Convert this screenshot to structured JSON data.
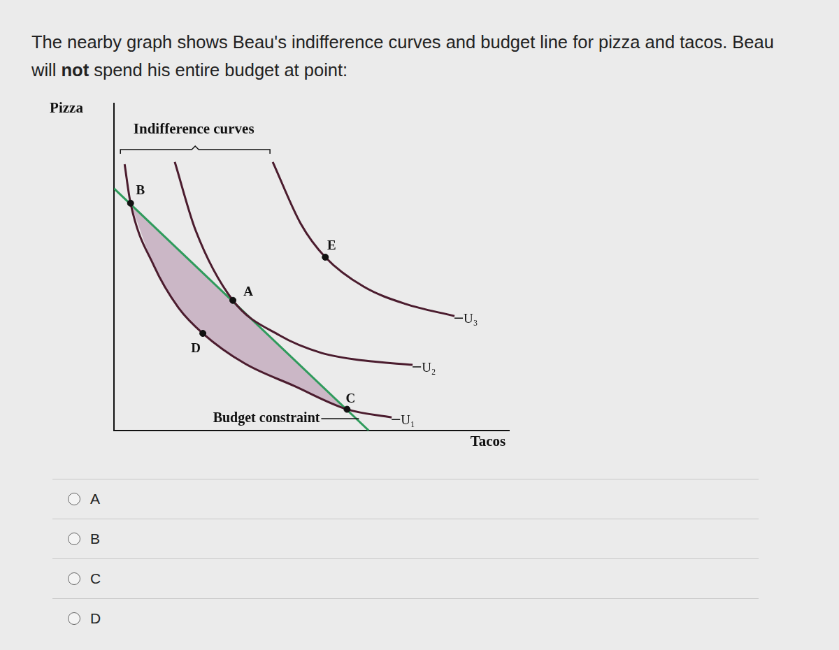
{
  "question": {
    "before": "The nearby graph shows Beau's indifference curves and budget line for pizza and tacos. Beau will",
    "emphasis": "not",
    "after": "spend his entire budget at point:"
  },
  "options": [
    "A",
    "B",
    "C",
    "D"
  ],
  "chart_data": {
    "type": "line",
    "x_label": "Tacos",
    "y_label": "Pizza",
    "xlim": [
      0,
      10
    ],
    "ylim": [
      0,
      10
    ],
    "xticks": [],
    "yticks": [],
    "tick_labels": false,
    "grid": false,
    "bracket_label": "Indifference curves",
    "series": [
      {
        "name": "U₁",
        "color": "#4b1c2e",
        "line_style": "solid",
        "x": [
          0.27,
          0.42,
          1.01,
          1.63,
          2.25,
          3.31,
          4.55,
          5.9,
          7.03
        ],
        "values": [
          8.14,
          6.95,
          5.04,
          3.76,
          2.97,
          2.05,
          1.37,
          0.65,
          0.4
        ]
      },
      {
        "name": "U₂",
        "color": "#4b1c2e",
        "line_style": "solid",
        "x": [
          1.54,
          2.07,
          3.01,
          4.19,
          5.26,
          6.32,
          7.56
        ],
        "values": [
          8.21,
          6.11,
          3.98,
          2.91,
          2.37,
          2.14,
          2.01
        ]
      },
      {
        "name": "U₃",
        "color": "#4b1c2e",
        "line_style": "solid",
        "x": [
          4.02,
          4.73,
          5.35,
          6.32,
          7.38,
          8.62
        ],
        "values": [
          8.21,
          6.32,
          5.3,
          4.4,
          3.87,
          3.5
        ]
      },
      {
        "name": "Budget constraint",
        "color": "#2f9b5c",
        "line_style": "solid",
        "x": [
          0,
          6.45
        ],
        "values": [
          7.4,
          0
        ]
      }
    ],
    "points": {
      "labels": [
        "A",
        "B",
        "C",
        "D",
        "E"
      ],
      "color": "#111111",
      "marker": "circle",
      "x": [
        3.01,
        0.42,
        5.9,
        2.25,
        5.35
      ],
      "values": [
        3.98,
        6.95,
        0.65,
        2.97,
        5.3
      ]
    },
    "shaded_region": {
      "between": [
        "U₁",
        "Budget constraint"
      ],
      "from": "B",
      "to": "C",
      "color": "#cbb7c6"
    }
  }
}
